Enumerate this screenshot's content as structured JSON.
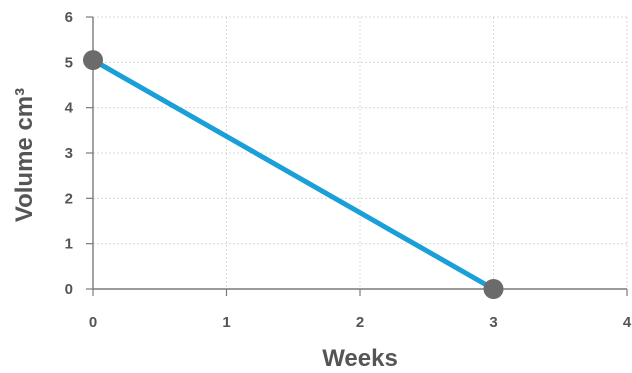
{
  "chart_data": {
    "type": "line",
    "title": "",
    "xlabel": "Weeks",
    "ylabel": "Volume cm³",
    "xlim": [
      0,
      4
    ],
    "ylim": [
      0,
      6
    ],
    "x_ticks": [
      "0",
      "1",
      "2",
      "3",
      "4"
    ],
    "y_ticks": [
      "0",
      "1",
      "2",
      "3",
      "4",
      "5",
      "6"
    ],
    "grid": true,
    "series": [
      {
        "x": [
          0,
          3
        ],
        "y": [
          5.05,
          0
        ]
      }
    ],
    "colors": {
      "line": "#1a9fd8",
      "marker": "#6b6b6b",
      "axis": "#7a7a7a",
      "grid": "#d9d9d9",
      "text": "#555555"
    }
  }
}
